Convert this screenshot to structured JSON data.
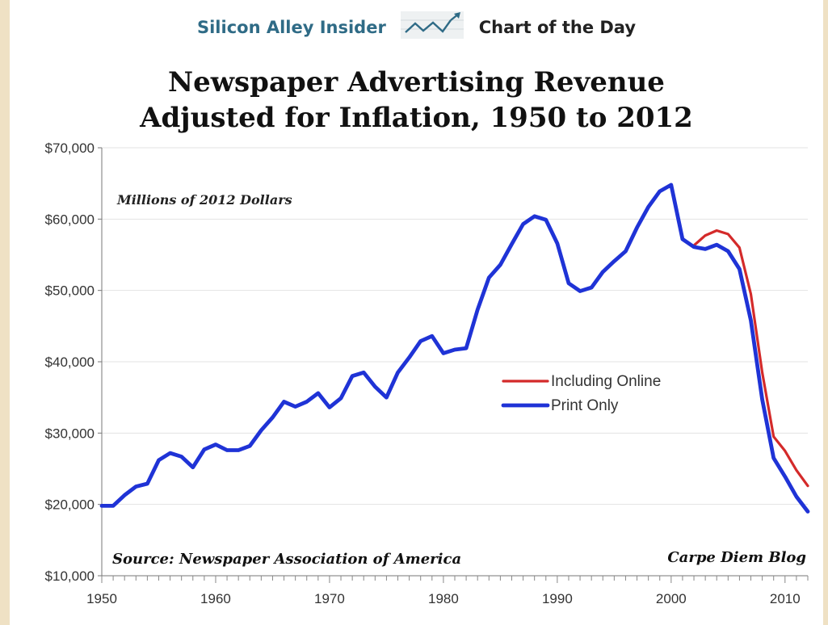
{
  "header": {
    "brand": "Silicon Alley Insider",
    "brand_icon": "trend-chart-icon",
    "section": "Chart of the Day"
  },
  "colors": {
    "including_online": "#d42a2a",
    "print_only": "#1f33d6",
    "brand": "#2f6b86",
    "background": "#efe1c4"
  },
  "chart_data": {
    "type": "line",
    "title_line1": "Newspaper Advertising Revenue",
    "title_line2": "Adjusted for Inflation, 1950 to 2012",
    "subtitle": "Millions of 2012 Dollars",
    "source": "Source: Newspaper Association of America",
    "credit": "Carpe Diem Blog",
    "xlim": [
      1950,
      2012
    ],
    "ylim": [
      10000,
      70000
    ],
    "x_ticks": [
      {
        "value": 1950,
        "label": "1950"
      },
      {
        "value": 1960,
        "label": "1960"
      },
      {
        "value": 1970,
        "label": "1970"
      },
      {
        "value": 1980,
        "label": "1980"
      },
      {
        "value": 1990,
        "label": "1990"
      },
      {
        "value": 2000,
        "label": "2000"
      },
      {
        "value": 2010,
        "label": "2010"
      }
    ],
    "y_ticks": [
      {
        "value": 10000,
        "label": "$10,000"
      },
      {
        "value": 20000,
        "label": "$20,000"
      },
      {
        "value": 30000,
        "label": "$30,000"
      },
      {
        "value": 40000,
        "label": "$40,000"
      },
      {
        "value": 50000,
        "label": "$50,000"
      },
      {
        "value": 60000,
        "label": "$60,000"
      },
      {
        "value": 70000,
        "label": "$70,000"
      }
    ],
    "grid": true,
    "legend_position": "center-right",
    "series": [
      {
        "name": "Including Online",
        "color": "#d42a2a",
        "x": [
          2002,
          2003,
          2004,
          2005,
          2006,
          2007,
          2008,
          2009,
          2010,
          2011,
          2012
        ],
        "y": [
          56300,
          57700,
          58400,
          57900,
          56000,
          49500,
          38500,
          29500,
          27500,
          24800,
          22600
        ]
      },
      {
        "name": "Print Only",
        "color": "#1f33d6",
        "x": [
          1950,
          1951,
          1952,
          1953,
          1954,
          1955,
          1956,
          1957,
          1958,
          1959,
          1960,
          1961,
          1962,
          1963,
          1964,
          1965,
          1966,
          1967,
          1968,
          1969,
          1970,
          1971,
          1972,
          1973,
          1974,
          1975,
          1976,
          1977,
          1978,
          1979,
          1980,
          1981,
          1982,
          1983,
          1984,
          1985,
          1986,
          1987,
          1988,
          1989,
          1990,
          1991,
          1992,
          1993,
          1994,
          1995,
          1996,
          1997,
          1998,
          1999,
          2000,
          2001,
          2002,
          2003,
          2004,
          2005,
          2006,
          2007,
          2008,
          2009,
          2010,
          2011,
          2012
        ],
        "y": [
          19800,
          19800,
          21300,
          22500,
          22900,
          26200,
          27200,
          26700,
          25200,
          27700,
          28400,
          27600,
          27600,
          28200,
          30400,
          32200,
          34400,
          33700,
          34400,
          35600,
          33600,
          34900,
          38000,
          38500,
          36500,
          35000,
          38500,
          40600,
          42900,
          43600,
          41200,
          41700,
          41900,
          47300,
          51800,
          53600,
          56500,
          59300,
          60400,
          59900,
          56600,
          51000,
          49900,
          50400,
          52600,
          54100,
          55500,
          58800,
          61700,
          63900,
          64800,
          57200,
          56100,
          55800,
          56400,
          55500,
          53000,
          45800,
          34700,
          26500,
          23900,
          21100,
          19000
        ]
      }
    ]
  }
}
